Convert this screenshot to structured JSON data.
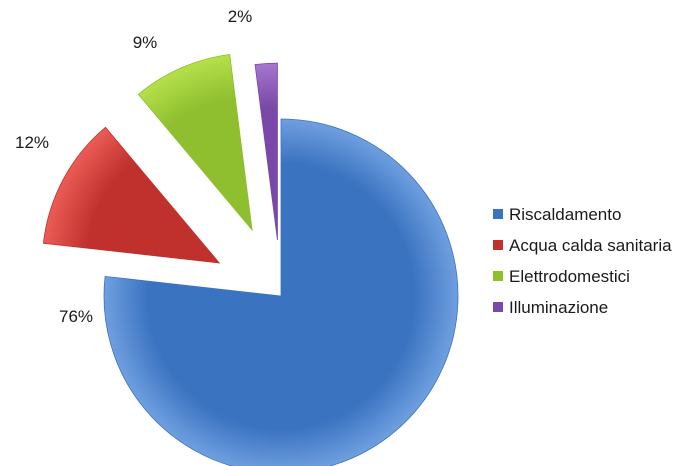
{
  "chart_data": {
    "type": "pie",
    "exploded": true,
    "categories": [
      "Riscaldamento",
      "Acqua calda sanitaria",
      "Elettrodomestici",
      "Illuminazione"
    ],
    "values": [
      76,
      12,
      9,
      2
    ],
    "labels": [
      "76%",
      "12%",
      "9%",
      "2%"
    ],
    "title": "",
    "legend_position": "right",
    "colors": [
      "#3a73c0",
      "#c0302c",
      "#8fbf2f",
      "#7a48a8"
    ],
    "light_colors": [
      "#6f9fe0",
      "#ec5c57",
      "#b5e04a",
      "#a676cf"
    ]
  }
}
